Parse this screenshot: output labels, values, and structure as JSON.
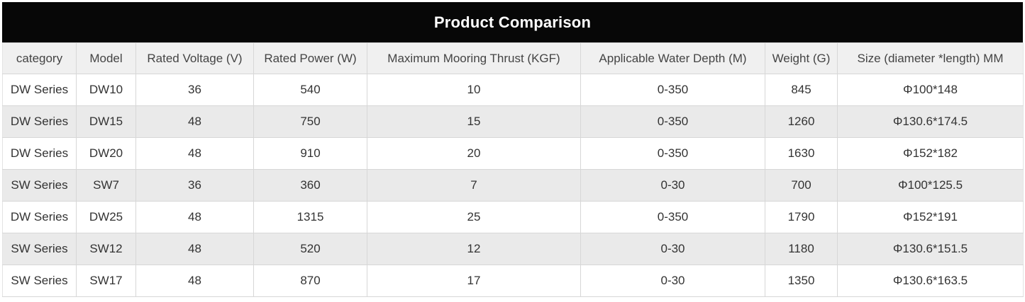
{
  "title": "Product Comparison",
  "chart_data": {
    "type": "table",
    "title": "Product Comparison",
    "columns": [
      "category",
      "Model",
      "Rated Voltage (V)",
      "Rated Power (W)",
      "Maximum Mooring Thrust (KGF)",
      "Applicable Water Depth (M)",
      "Weight (G)",
      "Size (diameter *length) MM"
    ],
    "rows": [
      [
        "DW Series",
        "DW10",
        36,
        540,
        10,
        "0-350",
        845,
        "Φ100*148"
      ],
      [
        "DW Series",
        "DW15",
        48,
        750,
        15,
        "0-350",
        1260,
        "Φ130.6*174.5"
      ],
      [
        "DW Series",
        "DW20",
        48,
        910,
        20,
        "0-350",
        1630,
        "Φ152*182"
      ],
      [
        "SW Series",
        "SW7",
        36,
        360,
        7,
        "0-30",
        700,
        "Φ100*125.5"
      ],
      [
        "DW Series",
        "DW25",
        48,
        1315,
        25,
        "0-350",
        1790,
        "Φ152*191"
      ],
      [
        "SW Series",
        "SW12",
        48,
        520,
        12,
        "0-30",
        1180,
        "Φ130.6*151.5"
      ],
      [
        "SW Series",
        "SW17",
        48,
        870,
        17,
        "0-30",
        1350,
        "Φ130.6*163.5"
      ]
    ]
  },
  "colors": {
    "title_bar_bg": "#070707",
    "title_text": "#ffffff",
    "header_bg": "#f0f0f0",
    "stripe_row_bg": "#eaeaea",
    "body_text": "#333333",
    "model_link": "#55add2",
    "grid_border": "#d7d7d7"
  }
}
